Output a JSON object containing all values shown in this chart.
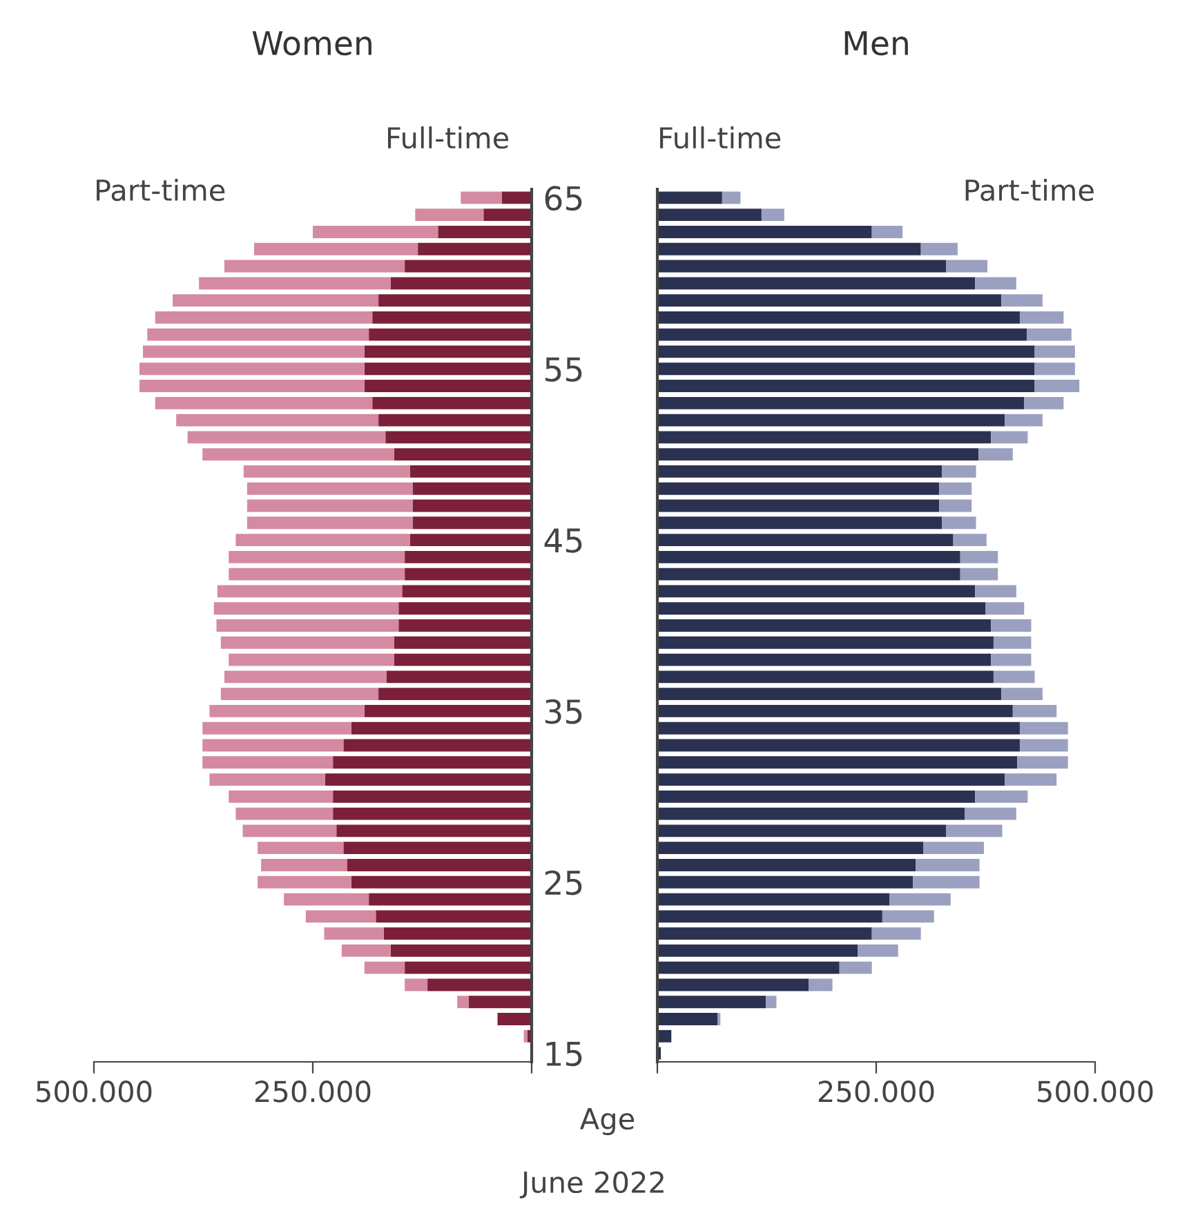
{
  "chart_data": [
    {
      "type": "bar",
      "orientation": "horizontal",
      "stacked": true,
      "title": "Women",
      "tick_labels": "x",
      "categories": [
        "65",
        null,
        null,
        null,
        null,
        null,
        null,
        null,
        null,
        null,
        "55",
        null,
        null,
        null,
        null,
        null,
        null,
        null,
        null,
        null,
        "45",
        null,
        null,
        null,
        null,
        null,
        null,
        null,
        null,
        null,
        "35",
        null,
        null,
        null,
        null,
        null,
        null,
        null,
        null,
        null,
        "25",
        null,
        null,
        null,
        null,
        null,
        null,
        null,
        null,
        null,
        "15"
      ],
      "xlim": [
        500000,
        0
      ],
      "xticks": [
        {
          "value": 500000,
          "label": "500.000"
        },
        {
          "value": 250000,
          "label": "250.000"
        },
        {
          "value": 0,
          "label": null
        }
      ],
      "series": [
        {
          "name": "Full-time",
          "color": "#7b1f3a",
          "values": [
            34000,
            55000,
            107000,
            130000,
            145000,
            161000,
            175000,
            182000,
            186000,
            191000,
            191000,
            191000,
            182000,
            175000,
            167000,
            157000,
            139000,
            136000,
            136000,
            136000,
            139000,
            145000,
            145000,
            148000,
            152000,
            152000,
            157000,
            157000,
            166000,
            175000,
            191000,
            206000,
            215000,
            227000,
            236000,
            227000,
            227000,
            223000,
            215000,
            211000,
            206000,
            186000,
            178000,
            169000,
            161000,
            145000,
            119000,
            72000,
            39000,
            5000,
            null
          ]
        },
        {
          "name": "Part-time",
          "color": "#d48aa0",
          "values": [
            47000,
            78000,
            143000,
            187000,
            206000,
            219000,
            235000,
            248000,
            253000,
            253000,
            257000,
            257000,
            248000,
            231000,
            226000,
            219000,
            190000,
            189000,
            189000,
            189000,
            199000,
            201000,
            201000,
            211000,
            211000,
            208000,
            198000,
            189000,
            185000,
            180000,
            177000,
            170000,
            161000,
            149000,
            132000,
            119000,
            111000,
            107000,
            98000,
            98000,
            107000,
            97000,
            80000,
            68000,
            56000,
            46000,
            26000,
            13000,
            0,
            4000,
            0
          ]
        }
      ]
    },
    {
      "type": "bar",
      "orientation": "horizontal",
      "stacked": true,
      "title": "Men",
      "ylabel": "Age",
      "annotations": [
        "June 2022"
      ],
      "categories": [
        "65",
        null,
        null,
        null,
        null,
        null,
        null,
        null,
        null,
        null,
        "55",
        null,
        null,
        null,
        null,
        null,
        null,
        null,
        null,
        null,
        "45",
        null,
        null,
        null,
        null,
        null,
        null,
        null,
        null,
        null,
        "35",
        null,
        null,
        null,
        null,
        null,
        null,
        null,
        null,
        null,
        "25",
        null,
        null,
        null,
        null,
        null,
        null,
        null,
        null,
        null,
        "15"
      ],
      "xlim": [
        0,
        500000
      ],
      "xticks": [
        {
          "value": 0,
          "label": null
        },
        {
          "value": 250000,
          "label": "250.000"
        },
        {
          "value": 500000,
          "label": "500.000"
        }
      ],
      "series": [
        {
          "name": "Full-time",
          "color": "#2b3150",
          "values": [
            74000,
            119000,
            245000,
            301000,
            330000,
            363000,
            393000,
            414000,
            422000,
            431000,
            431000,
            431000,
            419000,
            397000,
            381000,
            367000,
            325000,
            322000,
            322000,
            325000,
            338000,
            346000,
            346000,
            363000,
            375000,
            381000,
            384000,
            381000,
            384000,
            393000,
            406000,
            414000,
            414000,
            411000,
            397000,
            363000,
            351000,
            330000,
            304000,
            295000,
            292000,
            265000,
            257000,
            245000,
            229000,
            208000,
            173000,
            124000,
            69000,
            16000,
            4000
          ]
        },
        {
          "name": "Part-time",
          "color": "#9ba0c0",
          "values": [
            21000,
            26000,
            35000,
            42000,
            47000,
            47000,
            47000,
            50000,
            51000,
            46000,
            46000,
            51000,
            45000,
            43000,
            42000,
            39000,
            39000,
            37000,
            37000,
            39000,
            38000,
            43000,
            43000,
            47000,
            44000,
            46000,
            43000,
            46000,
            47000,
            47000,
            50000,
            55000,
            55000,
            58000,
            59000,
            60000,
            59000,
            64000,
            69000,
            73000,
            76000,
            70000,
            59000,
            56000,
            46000,
            37000,
            27000,
            12000,
            3000,
            0,
            0
          ]
        }
      ]
    }
  ]
}
